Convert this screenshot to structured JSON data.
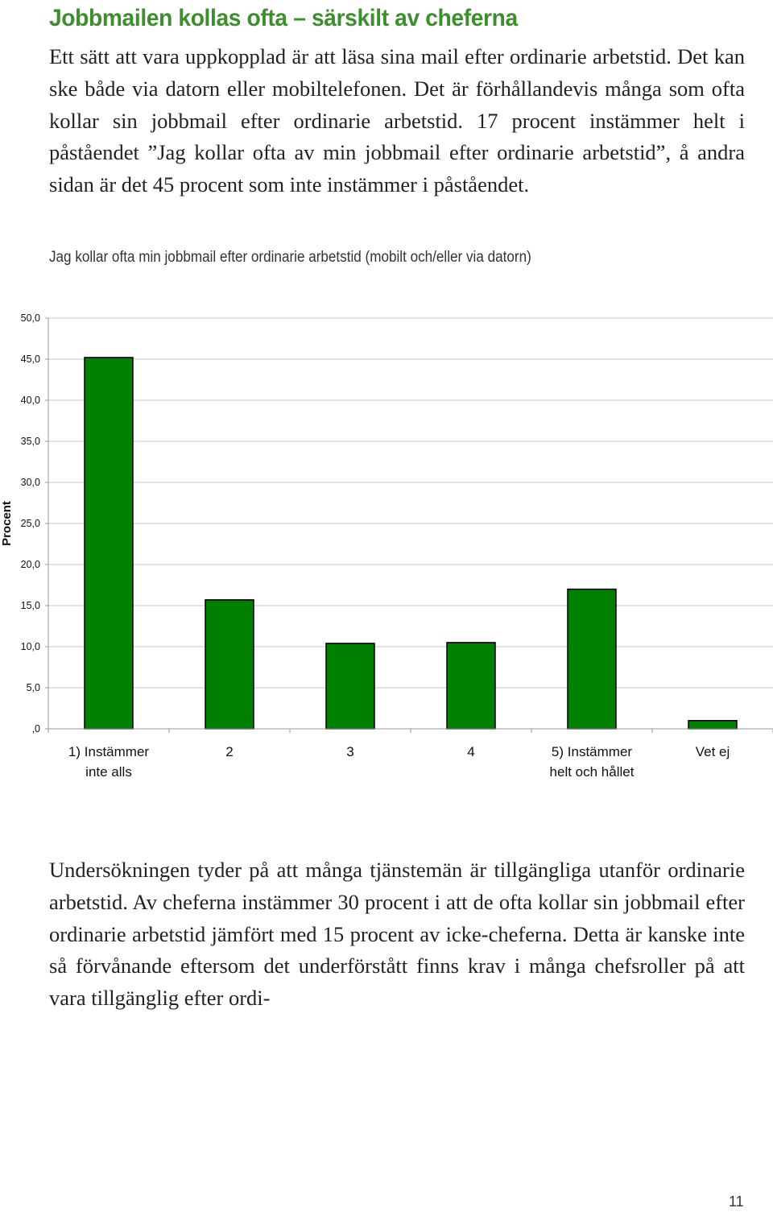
{
  "heading": "Jobbmailen kollas ofta – särskilt av cheferna",
  "paragraph1": "Ett sätt att vara uppkopplad är att läsa sina mail efter ordinarie arbetstid. Det kan ske både via datorn eller mobiltelefonen. Det är förhållandevis många som ofta kollar sin jobbmail efter ordinarie arbetstid. 17 procent instämmer helt i påståendet ”Jag kollar ofta av min jobbmail efter ordinarie arbetstid”, å andra sidan är det 45 procent som inte instämmer i påståendet.",
  "chart_title": "Jag kollar ofta min jobbmail efter ordinarie arbetstid (mobilt och/eller via datorn)",
  "paragraph2": "Undersökningen tyder på att många tjänstemän är tillgängliga utanför ordinarie arbetstid. Av cheferna instämmer 30 procent i att de ofta kollar sin jobbmail efter ordinarie arbetstid jämfört med 15 procent av icke-cheferna. Detta är kanske inte så förvånande eftersom det underförstått finns krav i många chefsroller på att vara tillgänglig efter ordi-",
  "page_number": "11",
  "chart_data": {
    "type": "bar",
    "categories": [
      "1) Instämmer inte alls",
      "2",
      "3",
      "4",
      "5) Instämmer helt och hållet",
      "Vet ej"
    ],
    "category_lines": [
      [
        "1) Instämmer",
        "inte alls"
      ],
      [
        "2"
      ],
      [
        "3"
      ],
      [
        "4"
      ],
      [
        "5) Instämmer",
        "helt och hållet"
      ],
      [
        "Vet ej"
      ]
    ],
    "values": [
      45.2,
      15.7,
      10.4,
      10.5,
      17.0,
      1.0
    ],
    "ylabel": "Procent",
    "ylim": [
      0,
      50
    ],
    "yticks": [
      ",0",
      "5,0",
      "10,0",
      "15,0",
      "20,0",
      "25,0",
      "30,0",
      "35,0",
      "40,0",
      "45,0",
      "50,0"
    ],
    "grid": true,
    "bar_color": "#008000"
  }
}
